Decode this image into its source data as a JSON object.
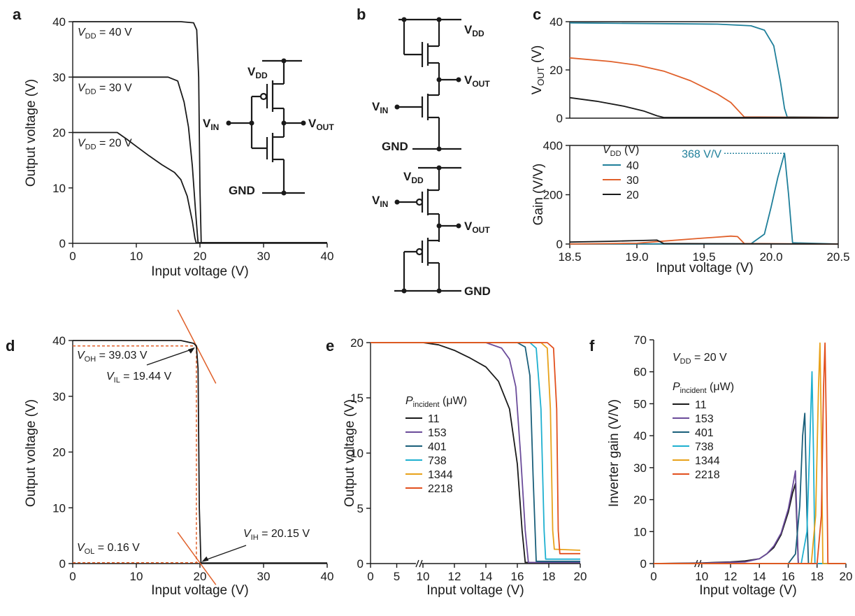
{
  "panel_labels": [
    "a",
    "b",
    "c",
    "d",
    "e",
    "f"
  ],
  "colors": {
    "black": "#1a1a1a",
    "teal": "#1f7f9a",
    "orange": "#e0602a",
    "purple": "#6b4c9a",
    "dark_teal": "#1a5f7a",
    "cyan": "#1eb0d0",
    "gold": "#e8a21a",
    "red_orange": "#e2501e"
  },
  "circuit_labels": {
    "vdd_main": "V",
    "vdd_sub": "DD",
    "vin_main": "V",
    "vin_sub": "IN",
    "vout_main": "V",
    "vout_sub": "OUT",
    "gnd": "GND"
  },
  "chart_data": [
    {
      "panel": "a",
      "type": "line",
      "xlabel": "Input voltage (V)",
      "ylabel": "Output voltage (V)",
      "xlim": [
        0,
        40
      ],
      "ylim": [
        0,
        40
      ],
      "xticks": [
        "0",
        "10",
        "20",
        "30",
        "40"
      ],
      "yticks": [
        "0",
        "10",
        "20",
        "30",
        "40"
      ],
      "series": [
        {
          "name": "V_DD = 40 V",
          "color": "#1a1a1a",
          "x": [
            0,
            17,
            19,
            19.5,
            19.8,
            20.0,
            20.2,
            40
          ],
          "y": [
            40,
            40,
            39.8,
            38.5,
            30,
            10,
            0.1,
            0.1
          ]
        },
        {
          "name": "V_DD = 30 V",
          "color": "#1a1a1a",
          "x": [
            0,
            15,
            16.5,
            17.5,
            18.2,
            18.8,
            19.3,
            19.7,
            40
          ],
          "y": [
            30,
            30,
            29.3,
            25.5,
            21,
            14,
            6,
            0.1,
            0.1
          ]
        },
        {
          "name": "V_DD = 20 V",
          "color": "#1a1a1a",
          "x": [
            0,
            7,
            8.5,
            10,
            12,
            14,
            16,
            17,
            18,
            18.8,
            19.2,
            19.4,
            40
          ],
          "y": [
            20,
            20,
            18.8,
            17.5,
            15.8,
            14.2,
            12.8,
            11.5,
            8.5,
            4,
            1,
            0.1,
            0.1
          ]
        }
      ],
      "annotations": [
        {
          "main": "V",
          "sub": "DD",
          "text": " = 40 V"
        },
        {
          "main": "V",
          "sub": "DD",
          "text": " = 30 V"
        },
        {
          "main": "V",
          "sub": "DD",
          "text": " = 20 V"
        }
      ]
    },
    {
      "panel": "c-top",
      "type": "line",
      "ylabel_main": "V",
      "ylabel_sub": "OUT",
      "ylabel_unit": " (V)",
      "xlim": [
        18.5,
        20.5
      ],
      "ylim": [
        0,
        40
      ],
      "yticks": [
        "0",
        "20",
        "40"
      ],
      "series": [
        {
          "name": "40",
          "color": "#1f7f9a",
          "x": [
            18.5,
            19.6,
            19.85,
            19.95,
            20.02,
            20.07,
            20.1,
            20.12,
            20.5
          ],
          "y": [
            39.5,
            39,
            38.3,
            36.5,
            30,
            15,
            4,
            0.5,
            0.3
          ]
        },
        {
          "name": "30",
          "color": "#e0602a",
          "x": [
            18.5,
            18.8,
            19.0,
            19.2,
            19.4,
            19.6,
            19.7,
            19.8,
            20.5
          ],
          "y": [
            25,
            23.5,
            22,
            19.5,
            15.5,
            10,
            6.5,
            0.5,
            0.3
          ]
        },
        {
          "name": "20",
          "color": "#1a1a1a",
          "x": [
            18.5,
            18.7,
            18.9,
            19.05,
            19.15,
            19.2,
            20.5
          ],
          "y": [
            8.5,
            7,
            5,
            3,
            1,
            0.3,
            0.3
          ]
        }
      ]
    },
    {
      "panel": "c-bottom",
      "type": "line",
      "xlabel": "Input voltage (V)",
      "ylabel": "Gain (V/V)",
      "xlim": [
        18.5,
        20.5
      ],
      "ylim": [
        0,
        400
      ],
      "xticks": [
        "18.5",
        "19.0",
        "19.5",
        "20.0",
        "20.5"
      ],
      "yticks": [
        "0",
        "200",
        "400"
      ],
      "legend_title_main": "V",
      "legend_title_sub": "DD",
      "legend_title_unit": " (V)",
      "peak_label": "368 V/V",
      "series": [
        {
          "name": "40",
          "color": "#1f7f9a",
          "x": [
            18.5,
            19.85,
            19.95,
            20.0,
            20.05,
            20.1,
            20.13,
            20.16,
            20.5
          ],
          "y": [
            0,
            1,
            40,
            150,
            270,
            368,
            200,
            5,
            0
          ]
        },
        {
          "name": "30",
          "color": "#e0602a",
          "x": [
            18.5,
            19.0,
            19.2,
            19.4,
            19.6,
            19.7,
            19.75,
            19.8,
            20.5
          ],
          "y": [
            0,
            3,
            12,
            20,
            28,
            32,
            30,
            2,
            0
          ]
        },
        {
          "name": "20",
          "color": "#1a1a1a",
          "x": [
            18.5,
            18.8,
            19.0,
            19.15,
            19.2,
            20.5
          ],
          "y": [
            8,
            11,
            14,
            16,
            2,
            0
          ]
        }
      ]
    },
    {
      "panel": "d",
      "type": "line",
      "xlabel": "Input voltage (V)",
      "ylabel": "Output voltage (V)",
      "xlim": [
        0,
        40
      ],
      "ylim": [
        0,
        40
      ],
      "xticks": [
        "0",
        "10",
        "20",
        "30",
        "40"
      ],
      "yticks": [
        "0",
        "10",
        "20",
        "30",
        "40"
      ],
      "series": [
        {
          "name": "",
          "color": "#1a1a1a",
          "x": [
            0,
            17,
            19,
            19.44,
            19.7,
            19.9,
            20.15,
            20.4,
            40
          ],
          "y": [
            40,
            40,
            39.5,
            39.03,
            35,
            10,
            0.16,
            0.1,
            0.1
          ]
        }
      ],
      "annotations": [
        {
          "main": "V",
          "sub": "OH",
          "text": " = 39.03 V"
        },
        {
          "main": "V",
          "sub": "IL",
          "text": " = 19.44 V"
        },
        {
          "main": "V",
          "sub": "OL",
          "text": " = 0.16 V"
        },
        {
          "main": "V",
          "sub": "IH",
          "text": " = 20.15 V"
        }
      ]
    },
    {
      "panel": "e",
      "type": "line",
      "xlabel": "Input voltage (V)",
      "ylabel": "Output voltage (V)",
      "xlim": [
        0,
        20
      ],
      "ylim": [
        0,
        20
      ],
      "xticks": [
        "0",
        "5",
        "10",
        "12",
        "14",
        "16",
        "18",
        "20"
      ],
      "yticks": [
        "0",
        "5",
        "10",
        "15",
        "20"
      ],
      "axis_break": "//",
      "legend_title_main": "P",
      "legend_title_sub": "incident",
      "legend_title_unit": " (μW)",
      "series": [
        {
          "name": "11",
          "color": "#1a1a1a",
          "x": [
            0,
            10,
            11,
            12,
            13,
            14,
            14.8,
            15.5,
            16.0,
            16.3,
            16.5,
            20
          ],
          "y": [
            20,
            20,
            19.8,
            19.3,
            18.6,
            17.8,
            16.5,
            14,
            9,
            3,
            0.1,
            0.1
          ]
        },
        {
          "name": "153",
          "color": "#6b4c9a",
          "x": [
            0,
            10,
            14,
            15,
            15.5,
            15.9,
            16.2,
            16.5,
            16.7,
            20
          ],
          "y": [
            20,
            20,
            20,
            19.5,
            18.5,
            16,
            10,
            3,
            0.1,
            0.1
          ]
        },
        {
          "name": "401",
          "color": "#1a5f7a",
          "x": [
            0,
            10,
            16,
            16.5,
            16.8,
            17.0,
            17.2,
            20
          ],
          "y": [
            20,
            20,
            20,
            19.6,
            17,
            8,
            0.2,
            0.2
          ]
        },
        {
          "name": "738",
          "color": "#1eb0d0",
          "x": [
            0,
            10,
            16.8,
            17.2,
            17.5,
            17.7,
            17.8,
            20
          ],
          "y": [
            20,
            20,
            20,
            19.5,
            14,
            3,
            0.4,
            0.4
          ]
        },
        {
          "name": "1344",
          "color": "#e8a21a",
          "x": [
            0,
            10,
            17.5,
            17.9,
            18.1,
            18.25,
            18.35,
            20
          ],
          "y": [
            20,
            20,
            20,
            19.5,
            14,
            3,
            1.3,
            1.2
          ]
        },
        {
          "name": "2218",
          "color": "#e2501e",
          "x": [
            0,
            10,
            17.9,
            18.3,
            18.5,
            18.6,
            18.7,
            20
          ],
          "y": [
            20,
            20,
            20,
            19.5,
            14,
            3,
            0.9,
            0.9
          ]
        }
      ]
    },
    {
      "panel": "f",
      "type": "line",
      "xlabel": "Input voltage (V)",
      "ylabel": "Inverter gain (V/V)",
      "xlim": [
        0,
        20
      ],
      "ylim": [
        0,
        70
      ],
      "xticks": [
        "0",
        "10",
        "12",
        "14",
        "16",
        "18",
        "20"
      ],
      "yticks": [
        "0",
        "10",
        "20",
        "30",
        "40",
        "50",
        "60",
        "70"
      ],
      "axis_break": "//",
      "condition_main": "V",
      "condition_sub": "DD",
      "condition_text": " = 20 V",
      "legend_title_main": "P",
      "legend_title_sub": "incident",
      "legend_title_unit": " (μW)",
      "series": [
        {
          "name": "11",
          "color": "#1a1a1a",
          "x": [
            0,
            10,
            12,
            13,
            14,
            14.5,
            15,
            15.5,
            16,
            16.3,
            16.5,
            16.6,
            16.7,
            20
          ],
          "y": [
            0,
            0.2,
            0.5,
            0.8,
            1.5,
            3,
            5,
            9,
            16,
            22,
            25,
            12,
            0,
            0
          ]
        },
        {
          "name": "153",
          "color": "#6b4c9a",
          "x": [
            0,
            10,
            13,
            14,
            14.5,
            15,
            15.5,
            16,
            16.3,
            16.5,
            16.6,
            16.7,
            20
          ],
          "y": [
            0,
            0.1,
            0.5,
            1.5,
            3,
            5.5,
            9.5,
            17,
            24,
            29,
            14,
            0,
            0
          ]
        },
        {
          "name": "401",
          "color": "#1a5f7a",
          "x": [
            0,
            10,
            16,
            16.5,
            16.8,
            17.0,
            17.15,
            17.3,
            17.4,
            20
          ],
          "y": [
            0,
            0,
            0,
            3,
            18,
            40,
            47,
            15,
            0,
            0
          ]
        },
        {
          "name": "738",
          "color": "#1eb0d0",
          "x": [
            0,
            10,
            16.9,
            17.3,
            17.5,
            17.65,
            17.75,
            17.85,
            20
          ],
          "y": [
            0,
            0,
            0,
            10,
            38,
            60,
            35,
            0,
            0
          ]
        },
        {
          "name": "1344",
          "color": "#e8a21a",
          "x": [
            0,
            10,
            17.6,
            17.9,
            18.1,
            18.2,
            18.3,
            18.4,
            20
          ],
          "y": [
            0,
            0,
            0,
            15,
            55,
            69,
            40,
            0,
            0
          ]
        },
        {
          "name": "2218",
          "color": "#e2501e",
          "x": [
            0,
            10,
            18.0,
            18.3,
            18.45,
            18.55,
            18.65,
            18.75,
            20
          ],
          "y": [
            0,
            0,
            0,
            15,
            55,
            69,
            40,
            0,
            0
          ]
        }
      ]
    }
  ]
}
